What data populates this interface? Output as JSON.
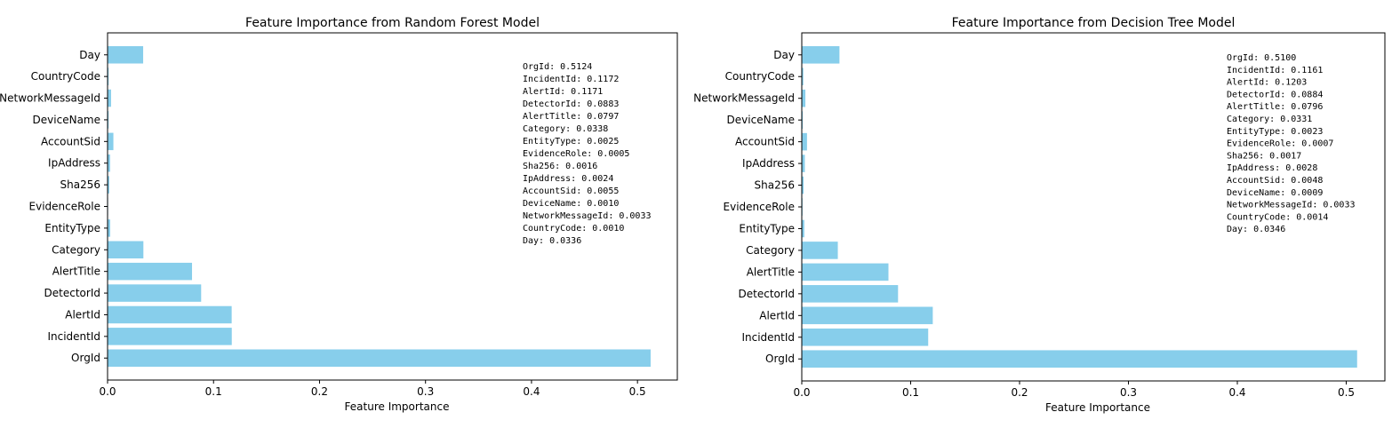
{
  "chart_data": [
    {
      "type": "bar",
      "orientation": "horizontal",
      "title": "Feature Importance from Random Forest Model",
      "xlabel": "Feature Importance",
      "ylabel": "",
      "xlim": [
        0,
        0.5376
      ],
      "xticks": [
        "0.0",
        "0.1",
        "0.2",
        "0.3",
        "0.4",
        "0.5"
      ],
      "grid": false,
      "bar_color": "#87ceeb",
      "categories": [
        "OrgId",
        "IncidentId",
        "AlertId",
        "DetectorId",
        "AlertTitle",
        "Category",
        "EntityType",
        "EvidenceRole",
        "Sha256",
        "IpAddress",
        "AccountSid",
        "DeviceName",
        "NetworkMessageId",
        "CountryCode",
        "Day"
      ],
      "values": [
        0.5124,
        0.1172,
        0.1171,
        0.0883,
        0.0797,
        0.0338,
        0.0025,
        0.0005,
        0.0016,
        0.0024,
        0.0055,
        0.001,
        0.0033,
        0.001,
        0.0336
      ],
      "annotation_lines": [
        "OrgId: 0.5124",
        "IncidentId: 0.1172",
        "AlertId: 0.1171",
        "DetectorId: 0.0883",
        "AlertTitle: 0.0797",
        "Category: 0.0338",
        "EntityType: 0.0025",
        "EvidenceRole: 0.0005",
        "Sha256: 0.0016",
        "IpAddress: 0.0024",
        "AccountSid: 0.0055",
        "DeviceName: 0.0010",
        "NetworkMessageId: 0.0033",
        "CountryCode: 0.0010",
        "Day: 0.0336"
      ]
    },
    {
      "type": "bar",
      "orientation": "horizontal",
      "title": "Feature Importance from Decision Tree Model",
      "xlabel": "Feature Importance",
      "ylabel": "",
      "xlim": [
        0,
        0.5355
      ],
      "xticks": [
        "0.0",
        "0.1",
        "0.2",
        "0.3",
        "0.4",
        "0.5"
      ],
      "grid": false,
      "bar_color": "#87ceeb",
      "categories": [
        "OrgId",
        "IncidentId",
        "AlertId",
        "DetectorId",
        "AlertTitle",
        "Category",
        "EntityType",
        "EvidenceRole",
        "Sha256",
        "IpAddress",
        "AccountSid",
        "DeviceName",
        "NetworkMessageId",
        "CountryCode",
        "Day"
      ],
      "values": [
        0.51,
        0.1161,
        0.1203,
        0.0884,
        0.0796,
        0.0331,
        0.0023,
        0.0007,
        0.0017,
        0.0028,
        0.0048,
        0.0009,
        0.0033,
        0.0014,
        0.0346
      ],
      "annotation_lines": [
        "OrgId: 0.5100",
        "IncidentId: 0.1161",
        "AlertId: 0.1203",
        "DetectorId: 0.0884",
        "AlertTitle: 0.0796",
        "Category: 0.0331",
        "EntityType: 0.0023",
        "EvidenceRole: 0.0007",
        "Sha256: 0.0017",
        "IpAddress: 0.0028",
        "AccountSid: 0.0048",
        "DeviceName: 0.0009",
        "NetworkMessageId: 0.0033",
        "CountryCode: 0.0014",
        "Day: 0.0346"
      ]
    }
  ]
}
